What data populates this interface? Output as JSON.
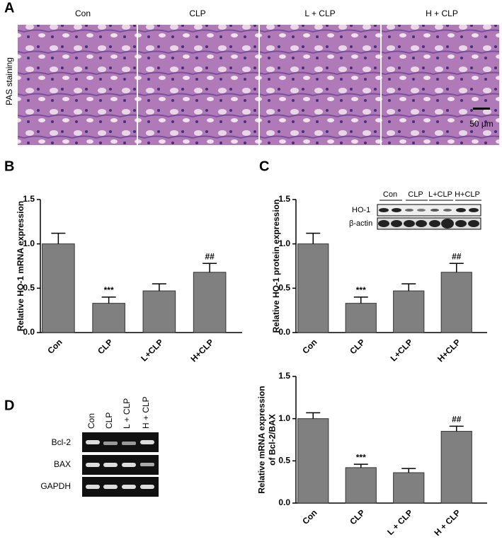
{
  "panel_labels": [
    "A",
    "B",
    "C",
    "D"
  ],
  "micrographs": {
    "stain": "PAS staining",
    "groups": [
      "Con",
      "CLP",
      "L + CLP",
      "H + CLP"
    ],
    "scale_bar": "50 μm"
  },
  "western_blot": {
    "lanes": [
      "Con",
      "CLP",
      "L+CLP",
      "H+CLP"
    ],
    "rows": [
      "HO-1",
      "β-actin"
    ]
  },
  "gel": {
    "lanes": [
      "Con",
      "CLP",
      "L + CLP",
      "H + CLP"
    ],
    "rows": [
      "Bcl-2",
      "BAX",
      "GAPDH"
    ]
  },
  "chart_data": [
    {
      "type": "bar",
      "ylabel": [
        "Relative HO-1 mRNA expression"
      ],
      "categories": [
        "Con",
        "CLP",
        "L+CLP",
        "H+CLP"
      ],
      "values": [
        1.0,
        0.33,
        0.47,
        0.68
      ],
      "errors": [
        0.12,
        0.07,
        0.08,
        0.1
      ],
      "annotations": [
        null,
        "***",
        null,
        "##"
      ],
      "color": "#808080",
      "ylim": [
        0,
        1.5
      ],
      "yticks": [
        {
          "value": 0,
          "label": "0.0"
        },
        {
          "value": 0.5,
          "label": "0.5"
        },
        {
          "value": 1,
          "label": "1.0"
        },
        {
          "value": 1.5,
          "label": "1.5"
        }
      ]
    },
    {
      "type": "bar",
      "ylabel": [
        "Relative HO-1 protein expression"
      ],
      "categories": [
        "Con",
        "CLP",
        "L+CLP",
        "H+CLP"
      ],
      "values": [
        1.0,
        0.33,
        0.47,
        0.68
      ],
      "errors": [
        0.12,
        0.07,
        0.08,
        0.1
      ],
      "annotations": [
        null,
        "***",
        null,
        "##"
      ],
      "color": "#808080",
      "ylim": [
        0,
        1.5
      ],
      "yticks": [
        {
          "value": 0,
          "label": "0.0"
        },
        {
          "value": 0.5,
          "label": "0.5"
        },
        {
          "value": 1,
          "label": "1.0"
        },
        {
          "value": 1.5,
          "label": "1.5"
        }
      ]
    },
    {
      "type": "bar",
      "ylabel": [
        "Relative mRNA expression",
        "of Bcl-2/BAX"
      ],
      "categories": [
        "Con",
        "CLP",
        "L + CLP",
        "H + CLP"
      ],
      "values": [
        1.0,
        0.42,
        0.36,
        0.85
      ],
      "errors": [
        0.07,
        0.04,
        0.05,
        0.06
      ],
      "annotations": [
        null,
        "***",
        null,
        "##"
      ],
      "color": "#808080",
      "ylim": [
        0,
        1.5
      ],
      "yticks": [
        {
          "value": 0,
          "label": "0.0"
        },
        {
          "value": 0.5,
          "label": "0.5"
        },
        {
          "value": 1,
          "label": "1.0"
        },
        {
          "value": 1.5,
          "label": "1.5"
        }
      ]
    }
  ]
}
